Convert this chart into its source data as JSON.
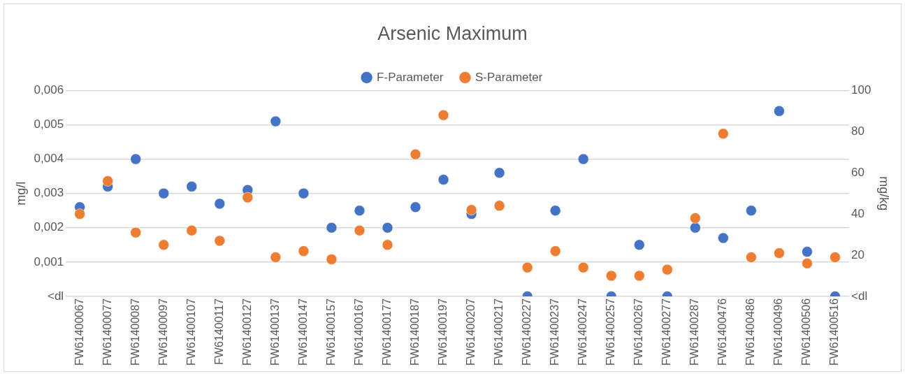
{
  "chart_data": {
    "type": "scatter",
    "title": "Arsenic Maximum",
    "ylabel": "mg/l",
    "y2label": "mg/kg",
    "categories": [
      "FW61400067",
      "FW61400077",
      "FW61400087",
      "FW61400097",
      "FW61400107",
      "FW61400117",
      "FW61400127",
      "FW61400137",
      "FW61400147",
      "FW61400157",
      "FW61400167",
      "FW61400177",
      "FW61400187",
      "FW61400197",
      "FW61400207",
      "FW61400217",
      "FW61400227",
      "FW61400237",
      "FW61400247",
      "FW61400257",
      "FW61400267",
      "FW61400277",
      "FW61400287",
      "FW61400476",
      "FW61400486",
      "FW61400496",
      "FW61400506",
      "FW61400516"
    ],
    "series": [
      {
        "name": "F-Parameter",
        "color": "#4472c4",
        "values": [
          0.0026,
          0.0032,
          0.004,
          0.003,
          0.0032,
          0.0027,
          0.0031,
          0.0051,
          0.003,
          0.002,
          0.0025,
          0.002,
          0.0026,
          0.0034,
          0.0024,
          0.0036,
          0,
          0.0025,
          0.004,
          0,
          0.0015,
          0,
          0.002,
          0.0017,
          0.0025,
          0.0054,
          0.0013,
          0
        ]
      },
      {
        "name": "S-Parameter",
        "color": "#ed7d31",
        "axis": "y2",
        "values": [
          40,
          56,
          31,
          25,
          32,
          27,
          48,
          19,
          22,
          18,
          32,
          25,
          69,
          88,
          42,
          44,
          14,
          22,
          14,
          10,
          10,
          13,
          38,
          79,
          19,
          21,
          16,
          19
        ]
      }
    ],
    "ylim": [
      0,
      0.006
    ],
    "yticks": [
      {
        "value": 0,
        "label": "<dl"
      },
      {
        "value": 0.001,
        "label": "0,001"
      },
      {
        "value": 0.002,
        "label": "0,002"
      },
      {
        "value": 0.003,
        "label": "0,003"
      },
      {
        "value": 0.004,
        "label": "0,004"
      },
      {
        "value": 0.005,
        "label": "0,005"
      },
      {
        "value": 0.006,
        "label": "0,006"
      }
    ],
    "y2lim": [
      0,
      100
    ],
    "y2ticks": [
      {
        "value": 0,
        "label": "<dl"
      },
      20,
      40,
      60,
      80,
      100
    ],
    "grid": "y",
    "legend": "top",
    "marker": "circle"
  }
}
